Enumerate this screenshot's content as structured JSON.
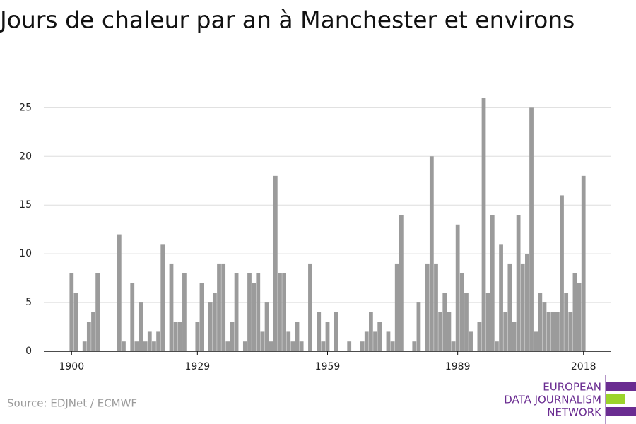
{
  "chart_data": {
    "type": "bar",
    "title": "Jours de chaleur par an à Manchester et environs",
    "source": "Source: EDJNet / ECMWF",
    "logo": [
      "EUROPEAN",
      "DATA JOURNALISM",
      "NETWORK"
    ],
    "color": "#9b9b9b",
    "x": [
      1900,
      1901,
      1902,
      1903,
      1904,
      1905,
      1906,
      1907,
      1908,
      1909,
      1910,
      1911,
      1912,
      1913,
      1914,
      1915,
      1916,
      1917,
      1918,
      1919,
      1920,
      1921,
      1922,
      1923,
      1924,
      1925,
      1926,
      1927,
      1928,
      1929,
      1930,
      1931,
      1932,
      1933,
      1934,
      1935,
      1936,
      1937,
      1938,
      1939,
      1940,
      1941,
      1942,
      1943,
      1944,
      1945,
      1946,
      1947,
      1948,
      1949,
      1950,
      1951,
      1952,
      1953,
      1954,
      1955,
      1956,
      1957,
      1958,
      1959,
      1960,
      1961,
      1962,
      1963,
      1964,
      1965,
      1966,
      1967,
      1968,
      1969,
      1970,
      1971,
      1972,
      1973,
      1974,
      1975,
      1976,
      1977,
      1978,
      1979,
      1980,
      1981,
      1982,
      1983,
      1984,
      1985,
      1986,
      1987,
      1988,
      1989,
      1990,
      1991,
      1992,
      1993,
      1994,
      1995,
      1996,
      1997,
      1998,
      1999,
      2000,
      2001,
      2002,
      2003,
      2004,
      2005,
      2006,
      2007,
      2008,
      2009,
      2010,
      2011,
      2012,
      2013,
      2014,
      2015,
      2016,
      2017,
      2018
    ],
    "values": [
      8,
      6,
      0,
      1,
      3,
      4,
      8,
      0,
      0,
      0,
      0,
      12,
      1,
      0,
      7,
      1,
      5,
      1,
      2,
      1,
      2,
      11,
      0,
      9,
      3,
      3,
      8,
      0,
      0,
      3,
      7,
      0,
      5,
      6,
      9,
      9,
      1,
      3,
      8,
      0,
      1,
      8,
      7,
      8,
      2,
      5,
      1,
      18,
      8,
      8,
      2,
      1,
      3,
      1,
      0,
      9,
      0,
      4,
      1,
      3,
      0,
      4,
      0,
      0,
      1,
      0,
      0,
      1,
      2,
      4,
      2,
      3,
      0,
      2,
      1,
      9,
      14,
      0,
      0,
      1,
      5,
      0,
      9,
      20,
      9,
      4,
      6,
      4,
      1,
      13,
      8,
      6,
      2,
      0,
      3,
      26,
      6,
      14,
      1,
      11,
      4,
      9,
      3,
      14,
      9,
      10,
      25,
      2,
      6,
      5,
      4,
      4,
      4,
      16,
      6,
      4,
      8,
      7,
      18
    ],
    "xlim": [
      1893.6,
      2024.4
    ],
    "xticks": [
      1900,
      1929,
      1959,
      1989,
      2018
    ],
    "ylim": [
      0,
      28
    ],
    "yticks": [
      0,
      5,
      10,
      15,
      20,
      25
    ],
    "grid": true
  }
}
